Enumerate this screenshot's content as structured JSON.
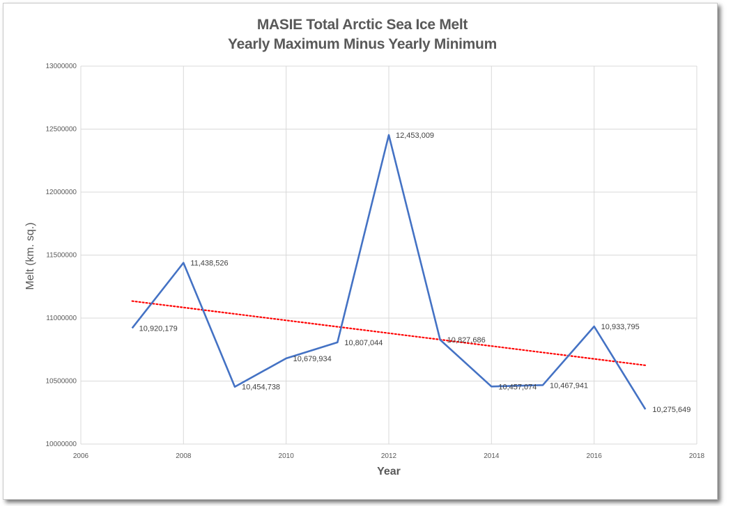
{
  "chart_data": {
    "type": "line",
    "title": "MASIE Total Arctic Sea Ice Melt",
    "subtitle": "Yearly Maximum Minus Yearly Minimum",
    "xlabel": "Year",
    "ylabel": "Melt (km. sq.)",
    "xlim": [
      2006,
      2018
    ],
    "ylim": [
      10000000,
      13000000
    ],
    "xticks": [
      "2006",
      "2008",
      "2010",
      "2012",
      "2014",
      "2016",
      "2018"
    ],
    "yticks": [
      "10000000",
      "10500000",
      "11000000",
      "11500000",
      "12000000",
      "12500000",
      "13000000"
    ],
    "series": [
      {
        "name": "Melt",
        "color": "#4472c4",
        "x": [
          2007,
          2008,
          2009,
          2010,
          2011,
          2012,
          2013,
          2014,
          2015,
          2016,
          2017
        ],
        "values": [
          10920179,
          11438526,
          10454738,
          10679934,
          10807044,
          12453009,
          10827686,
          10457074,
          10467941,
          10933795,
          10275649
        ],
        "labels": [
          "10,920,179",
          "11,438,526",
          "10,454,738",
          "10,679,934",
          "10,807,044",
          "12,453,009",
          "10,827,686",
          "10,457,074",
          "10,467,941",
          "10,933,795",
          "10,275,649"
        ]
      }
    ],
    "trendline": {
      "type": "linear",
      "color": "#ff0000",
      "style": "dotted",
      "x": [
        2007,
        2017
      ],
      "values": [
        11135000,
        10625000
      ]
    },
    "grid": true
  }
}
